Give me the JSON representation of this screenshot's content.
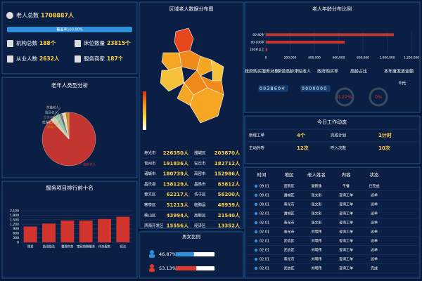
{
  "summary": {
    "total": {
      "label": "老人总数",
      "value": "1708887人"
    },
    "coverage": "覆盖率100.00%",
    "stats": [
      {
        "label": "机构总数",
        "value": "188个"
      },
      {
        "label": "床位数量",
        "value": "23815个"
      },
      {
        "label": "从业人数",
        "value": "2632人"
      },
      {
        "label": "服务商家",
        "value": "187个"
      }
    ]
  },
  "chart_data": [
    {
      "type": "pie",
      "title": "老年人类型分析",
      "categories": [
        "高龄老人",
        "失能老人",
        "独居老人",
        "空巢老人",
        "低保老人",
        "其他"
      ],
      "values": [
        88,
        3,
        3,
        2,
        2,
        2
      ],
      "colors": [
        "#c23531",
        "#d8cfa8",
        "#91c7ae",
        "#6e7074",
        "#e8d8b8",
        "#ca8622"
      ]
    },
    {
      "type": "bar",
      "title": "服务项目排行前十名",
      "categories": [
        "理发",
        "助浴助洁",
        "整理内务",
        "家政陪聊服务",
        "代办服务",
        "保洁"
      ],
      "values": [
        1050,
        1250,
        1450,
        1450,
        1550,
        1700
      ],
      "color": "#d0342c",
      "ylim": [
        0,
        2100
      ],
      "yticks": [
        0,
        300,
        600,
        900,
        {
          "value": 1200,
          "label": "1,200"
        },
        {
          "value": 1500,
          "label": "1,500"
        },
        {
          "value": 1800,
          "label": "1,800"
        },
        {
          "value": 2100,
          "label": "2,100"
        }
      ],
      "grid": true
    },
    {
      "type": "hbar",
      "title": "老人年龄分布比例",
      "categories": [
        "60-80岁",
        "80-100岁",
        "100岁以上"
      ],
      "values": [
        1055000,
        650000,
        12000
      ],
      "color": "#c23531",
      "xlim": [
        0,
        1200000
      ],
      "xticks": [
        0,
        {
          "value": 200000,
          "label": "200,000"
        },
        {
          "value": 400000,
          "label": "400,000"
        },
        {
          "value": 600000,
          "label": "600,000"
        },
        {
          "value": 800000,
          "label": "800,000"
        },
        {
          "value": 1000000,
          "label": "1,000,000"
        },
        {
          "value": 1200000,
          "label": "1,200,000"
        }
      ],
      "grid": true
    }
  ],
  "region": {
    "title": "区域老人数据分布图",
    "rows": [
      [
        "寿光市",
        "226350人",
        "潍城区",
        "203870人"
      ],
      [
        "青州市",
        "191836人",
        "安丘市",
        "182712人"
      ],
      [
        "诸城市",
        "180739人",
        "高密市",
        "152986人"
      ],
      [
        "昌乐县",
        "138129人",
        "昌邑市",
        "83812人"
      ],
      [
        "奎文区",
        "62217人",
        "坊子区",
        "56200人"
      ],
      [
        "寒亭区",
        "51213人",
        "临朐县",
        "48939人"
      ],
      [
        "峡山区",
        "43994人",
        "高新区",
        "21540人"
      ],
      [
        "滨海开发区",
        "15556人",
        "经济区",
        "13352人"
      ]
    ]
  },
  "gender": {
    "title": "男女比例",
    "values": [
      46.87,
      53.13
    ],
    "value_labels": [
      "46.87%",
      "53.13%"
    ]
  },
  "policy": {
    "headers": [
      "政府购买服务对象",
      "享受高龄津贴老人",
      "政府购买率",
      "高龄占比",
      "本年度发放金额"
    ],
    "counters": [
      "0038604",
      "0000000"
    ],
    "gauges": {
      "values": [
        0.22,
        0
      ],
      "value_labels": [
        "0.22%",
        "0%"
      ]
    },
    "amount": "0元"
  },
  "work": {
    "title": "今日工作动态",
    "items": [
      [
        "新增工单",
        "4个",
        "完成计划",
        "2计时"
      ],
      [
        "主动外呼",
        "12次",
        "呼入次数",
        "10次"
      ]
    ]
  },
  "orders": {
    "headers": [
      "时间",
      "地区",
      "老人姓名",
      "内容",
      "状态"
    ],
    "rows": [
      [
        "09.01",
        "高新区",
        "谢新珠",
        "午餐",
        "已完成"
      ],
      [
        "09.01",
        "潍城区",
        "张文彩",
        "咨询工单",
        "派单"
      ],
      [
        "09.01",
        "寿光市",
        "张文彩",
        "咨询工单",
        "派单"
      ],
      [
        "02.01",
        "潍城区",
        "张文彩",
        "咨询工单",
        "派单"
      ],
      [
        "02.01",
        "寿光市",
        "张文彩",
        "咨询工单",
        "派单"
      ],
      [
        "02.01",
        "寿光市",
        "刘明伟",
        "咨询工单",
        "派单"
      ],
      [
        "02.01",
        "武信区",
        "刘明伟",
        "咨询工单",
        "派单"
      ],
      [
        "02.01",
        "武信区",
        "刘明伟",
        "咨询工单",
        "派单"
      ],
      [
        "02.01",
        "寿光市",
        "刘明伟",
        "咨询工单",
        "派单"
      ],
      [
        "02.01",
        "武信区",
        "刘明伟",
        "咨询工单",
        "完成"
      ]
    ]
  }
}
